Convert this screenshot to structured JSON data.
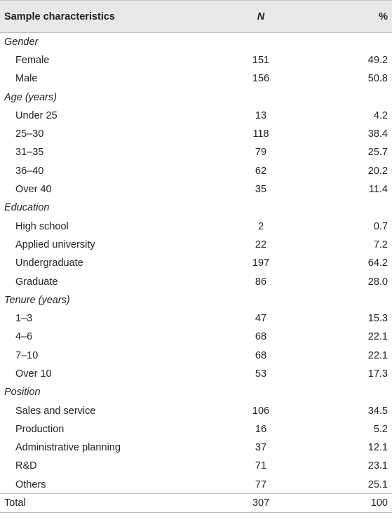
{
  "table": {
    "columns": [
      "Sample characteristics",
      "N",
      "%"
    ],
    "groups": [
      {
        "label": "Gender",
        "rows": [
          [
            "Female",
            151,
            "49.2"
          ],
          [
            "Male",
            156,
            "50.8"
          ]
        ]
      },
      {
        "label": "Age (years)",
        "rows": [
          [
            "Under 25",
            13,
            "4.2"
          ],
          [
            "25–30",
            118,
            "38.4"
          ],
          [
            "31–35",
            79,
            "25.7"
          ],
          [
            "36–40",
            62,
            "20.2"
          ],
          [
            "Over 40",
            35,
            "11.4"
          ]
        ]
      },
      {
        "label": "Education",
        "rows": [
          [
            "High school",
            2,
            "0.7"
          ],
          [
            "Applied university",
            22,
            "7.2"
          ],
          [
            "Undergraduate",
            197,
            "64.2"
          ],
          [
            "Graduate",
            86,
            "28.0"
          ]
        ]
      },
      {
        "label": "Tenure (years)",
        "rows": [
          [
            "1–3",
            47,
            "15.3"
          ],
          [
            "4–6",
            68,
            "22.1"
          ],
          [
            "7–10",
            68,
            "22.1"
          ],
          [
            "Over 10",
            53,
            "17.3"
          ]
        ]
      },
      {
        "label": "Position",
        "rows": [
          [
            "Sales and service",
            106,
            "34.5"
          ],
          [
            "Production",
            16,
            "5.2"
          ],
          [
            "Administrative planning",
            37,
            "12.1"
          ],
          [
            "R&D",
            71,
            "23.1"
          ],
          [
            "Others",
            77,
            "25.1"
          ]
        ]
      }
    ],
    "total": [
      "Total",
      307,
      "100"
    ]
  }
}
